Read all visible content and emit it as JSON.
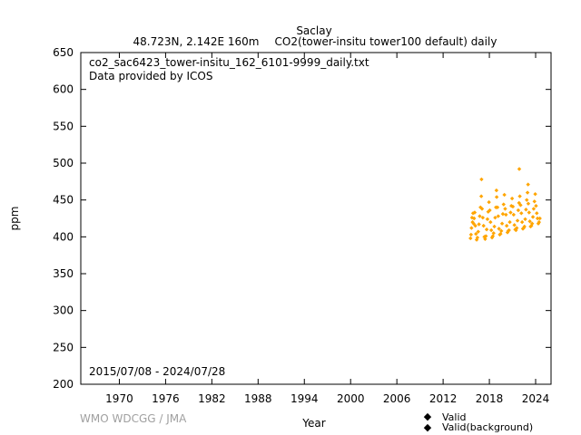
{
  "header": {
    "station": "Saclay",
    "location": "48.723N, 2.142E 160m",
    "dataset": "CO2(tower-insitu tower100 default) daily"
  },
  "info": {
    "filename": "co2_sac6423_tower-insitu_162_6101-9999_daily.txt",
    "provider": "Data provided by ICOS",
    "period": "2015/07/08 - 2024/07/28"
  },
  "credit": "WMO WDCGG / JMA",
  "legend": {
    "valid": "Valid",
    "background": "Valid(background)"
  },
  "colors": {
    "valid": "#ffa500",
    "background": "#008080"
  },
  "chart_data": {
    "type": "scatter",
    "xlabel": "Year",
    "ylabel": "ppm",
    "xlim": [
      1965,
      2026
    ],
    "ylim": [
      200,
      650
    ],
    "xticks": [
      1970,
      1976,
      1982,
      1988,
      1994,
      2000,
      2006,
      2012,
      2018,
      2024
    ],
    "yticks": [
      200,
      250,
      300,
      350,
      400,
      450,
      500,
      550,
      600,
      650
    ],
    "grid": false,
    "legend_position": "bottom-right",
    "series": [
      {
        "name": "Valid",
        "color": "#ffa500",
        "x": [
          2015.55,
          2015.62,
          2015.68,
          2015.75,
          2015.82,
          2015.88,
          2015.95,
          2016.02,
          2016.1,
          2016.18,
          2016.26,
          2016.35,
          2016.45,
          2016.55,
          2016.65,
          2016.75,
          2016.85,
          2016.95,
          2017.05,
          2017.15,
          2017.25,
          2017.35,
          2017.45,
          2017.55,
          2017.65,
          2017.75,
          2017.85,
          2017.95,
          2018.05,
          2018.15,
          2018.25,
          2018.35,
          2018.45,
          2018.55,
          2018.65,
          2018.75,
          2018.85,
          2018.95,
          2019.05,
          2019.15,
          2019.25,
          2019.35,
          2019.45,
          2019.55,
          2019.65,
          2019.75,
          2019.85,
          2019.95,
          2020.05,
          2020.15,
          2020.25,
          2020.35,
          2020.45,
          2020.55,
          2020.65,
          2020.75,
          2020.85,
          2020.95,
          2021.05,
          2021.15,
          2021.25,
          2021.35,
          2021.45,
          2021.55,
          2021.65,
          2021.75,
          2021.85,
          2021.95,
          2022.05,
          2022.15,
          2022.25,
          2022.35,
          2022.45,
          2022.55,
          2022.65,
          2022.75,
          2022.85,
          2022.95,
          2023.05,
          2023.15,
          2023.25,
          2023.35,
          2023.45,
          2023.55,
          2023.65,
          2023.75,
          2023.85,
          2023.95,
          2024.05,
          2024.15,
          2024.25,
          2024.35,
          2024.45,
          2024.55,
          2016.98,
          2018.92,
          2021.88,
          2023.02
        ],
        "y": [
          398,
          403,
          412,
          426,
          420,
          432,
          418,
          425,
          433,
          415,
          404,
          396,
          399,
          407,
          417,
          428,
          440,
          455,
          438,
          426,
          415,
          400,
          397,
          401,
          410,
          424,
          434,
          447,
          436,
          420,
          409,
          399,
          401,
          405,
          414,
          426,
          440,
          454,
          440,
          428,
          411,
          403,
          404,
          408,
          418,
          431,
          444,
          457,
          438,
          430,
          415,
          406,
          408,
          409,
          420,
          433,
          442,
          452,
          441,
          430,
          416,
          410,
          409,
          412,
          422,
          436,
          446,
          455,
          443,
          432,
          420,
          411,
          412,
          414,
          424,
          437,
          450,
          460,
          445,
          433,
          421,
          414,
          415,
          418,
          427,
          438,
          448,
          458,
          442,
          432,
          425,
          418,
          420,
          425,
          478,
          463,
          492,
          471
        ]
      },
      {
        "name": "Valid(background)",
        "color": "#008080",
        "x": [],
        "y": []
      }
    ]
  }
}
